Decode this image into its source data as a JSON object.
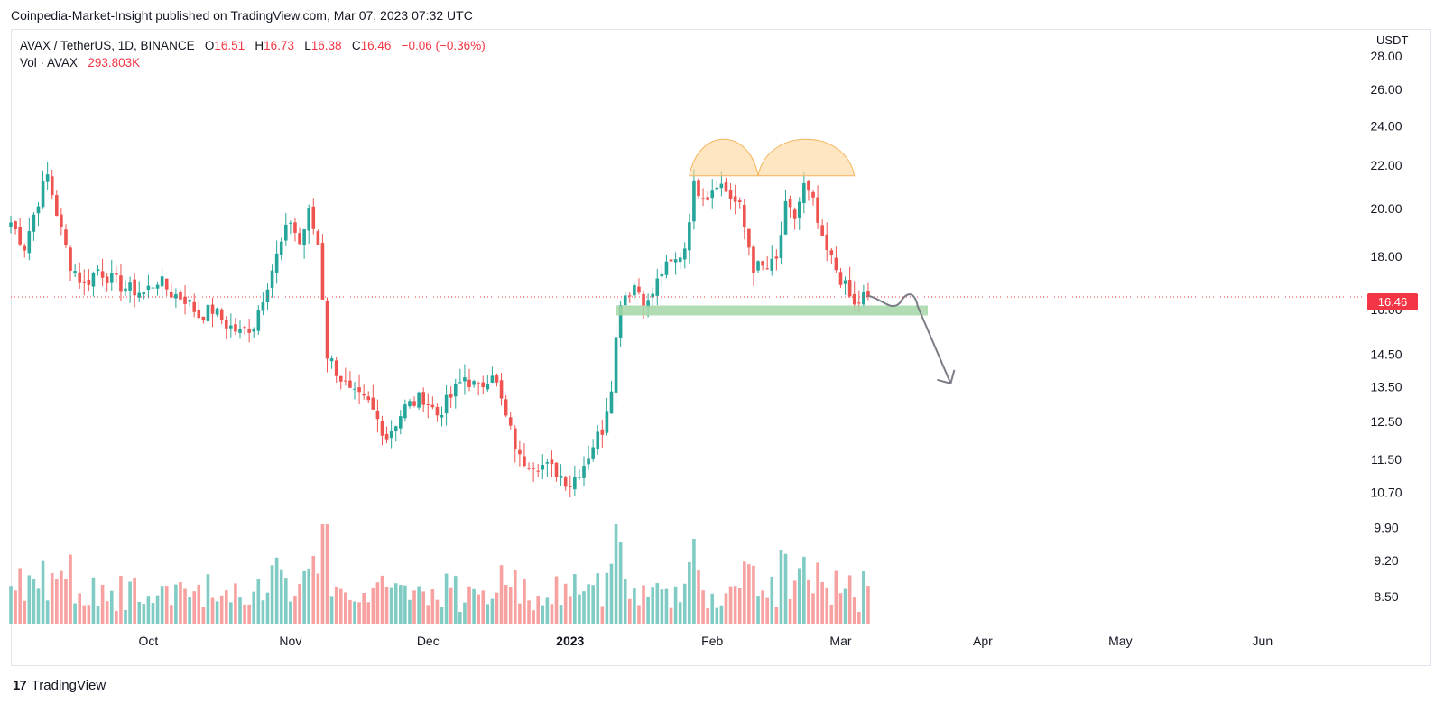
{
  "header": {
    "publisher_line": "Coinpedia-Market-Insight published on TradingView.com, Mar 07, 2023 07:32 UTC"
  },
  "legend": {
    "symbol": "AVAX / TetherUS, 1D, BINANCE",
    "o_label": "O",
    "o_val": "16.51",
    "h_label": "H",
    "h_val": "16.73",
    "l_label": "L",
    "l_val": "16.38",
    "c_label": "C",
    "c_val": "16.46",
    "change": "−0.06 (−0.36%)",
    "vol_label": "Vol · AVAX",
    "vol_val": "293.803K"
  },
  "price_axis": {
    "unit": "USDT",
    "last_price": "16.46"
  },
  "footer": {
    "brand": "TradingView"
  },
  "colors": {
    "up": "#26a69a",
    "down": "#ef5350",
    "up_vol": "#80cbc4",
    "down_vol": "#f7a1a1",
    "support_zone": "#a5d6a7",
    "pattern": "#ffd59a",
    "arrow": "#7b7c86",
    "last_line": "#f23645"
  },
  "chart_data": {
    "type": "candlestick",
    "title": "AVAX / TetherUS, 1D, BINANCE",
    "y_scale": "log",
    "ylim": [
      8.0,
      28.5
    ],
    "y_ticks": [
      "28.00",
      "26.00",
      "24.00",
      "22.00",
      "20.00",
      "18.00",
      "16.00",
      "14.50",
      "13.50",
      "12.50",
      "11.50",
      "10.70",
      "9.90",
      "9.20",
      "8.50"
    ],
    "x_ticks": [
      "Oct",
      "Nov",
      "Dec",
      "2023",
      "Feb",
      "Mar",
      "Apr",
      "May",
      "Jun"
    ],
    "x_tick_dates": [
      "2022-10-01",
      "2022-11-01",
      "2022-12-01",
      "2023-01-01",
      "2023-02-01",
      "2023-03-01",
      "2023-04-01",
      "2023-05-01",
      "2023-06-01"
    ],
    "x_range_dates": [
      "2022-09-01",
      "2023-06-22"
    ],
    "date_start": "2022-09-01",
    "close_path": [
      [
        "2022-09-01",
        19.4
      ],
      [
        "2022-09-04",
        18.4
      ],
      [
        "2022-09-07",
        20.4
      ],
      [
        "2022-09-09",
        21.5
      ],
      [
        "2022-09-12",
        19.0
      ],
      [
        "2022-09-14",
        17.7
      ],
      [
        "2022-09-17",
        16.9
      ],
      [
        "2022-09-20",
        17.5
      ],
      [
        "2022-09-23",
        17.1
      ],
      [
        "2022-09-26",
        16.8
      ],
      [
        "2022-09-30",
        16.6
      ],
      [
        "2022-10-03",
        17.1
      ],
      [
        "2022-10-06",
        16.6
      ],
      [
        "2022-10-09",
        16.4
      ],
      [
        "2022-10-12",
        15.8
      ],
      [
        "2022-10-15",
        16.0
      ],
      [
        "2022-10-18",
        15.5
      ],
      [
        "2022-10-21",
        15.2
      ],
      [
        "2022-10-24",
        15.5
      ],
      [
        "2022-10-27",
        17.0
      ],
      [
        "2022-10-30",
        18.5
      ],
      [
        "2022-11-01",
        19.5
      ],
      [
        "2022-11-03",
        18.5
      ],
      [
        "2022-11-05",
        19.8
      ],
      [
        "2022-11-07",
        18.5
      ],
      [
        "2022-11-09",
        14.5
      ],
      [
        "2022-11-11",
        14.0
      ],
      [
        "2022-11-14",
        13.3
      ],
      [
        "2022-11-18",
        13.0
      ],
      [
        "2022-11-22",
        12.1
      ],
      [
        "2022-11-26",
        12.9
      ],
      [
        "2022-11-30",
        13.2
      ],
      [
        "2022-12-03",
        12.7
      ],
      [
        "2022-12-06",
        13.2
      ],
      [
        "2022-12-09",
        13.8
      ],
      [
        "2022-12-12",
        13.4
      ],
      [
        "2022-12-15",
        14.0
      ],
      [
        "2022-12-18",
        12.6
      ],
      [
        "2022-12-21",
        11.5
      ],
      [
        "2022-12-25",
        11.4
      ],
      [
        "2022-12-29",
        11.2
      ],
      [
        "2023-01-01",
        10.9
      ],
      [
        "2023-01-04",
        11.4
      ],
      [
        "2023-01-06",
        11.9
      ],
      [
        "2023-01-08",
        12.3
      ],
      [
        "2023-01-10",
        13.6
      ],
      [
        "2023-01-12",
        16.4
      ],
      [
        "2023-01-15",
        16.9
      ],
      [
        "2023-01-18",
        16.2
      ],
      [
        "2023-01-21",
        17.4
      ],
      [
        "2023-01-24",
        17.8
      ],
      [
        "2023-01-26",
        18.4
      ],
      [
        "2023-01-28",
        21.0
      ],
      [
        "2023-01-31",
        20.6
      ],
      [
        "2023-02-02",
        21.3
      ],
      [
        "2023-02-04",
        20.8
      ],
      [
        "2023-02-07",
        20.0
      ],
      [
        "2023-02-10",
        17.6
      ],
      [
        "2023-02-13",
        17.5
      ],
      [
        "2023-02-15",
        17.8
      ],
      [
        "2023-02-17",
        20.0
      ],
      [
        "2023-02-19",
        19.6
      ],
      [
        "2023-02-21",
        21.0
      ],
      [
        "2023-02-23",
        20.2
      ],
      [
        "2023-02-25",
        18.5
      ],
      [
        "2023-02-28",
        17.5
      ],
      [
        "2023-03-02",
        16.8
      ],
      [
        "2023-03-04",
        16.1
      ],
      [
        "2023-03-06",
        16.5
      ],
      [
        "2023-03-07",
        16.46
      ]
    ],
    "volume_profile_note": "volume bars beneath price, green when close>open, red otherwise",
    "annotations": {
      "support_zone": {
        "from_date": "2023-01-11",
        "to_date": "2023-03-20",
        "low": 15.8,
        "high": 16.15,
        "color": "#a5d6a7"
      },
      "double_top": [
        {
          "from_date": "2023-01-27",
          "to_date": "2023-02-11",
          "base": 21.5
        },
        {
          "from_date": "2023-02-11",
          "to_date": "2023-03-04",
          "base": 21.5
        }
      ],
      "projection_arrow": {
        "from": [
          "2023-03-07",
          16.5
        ],
        "to": [
          "2023-03-25",
          13.6
        ]
      }
    }
  }
}
